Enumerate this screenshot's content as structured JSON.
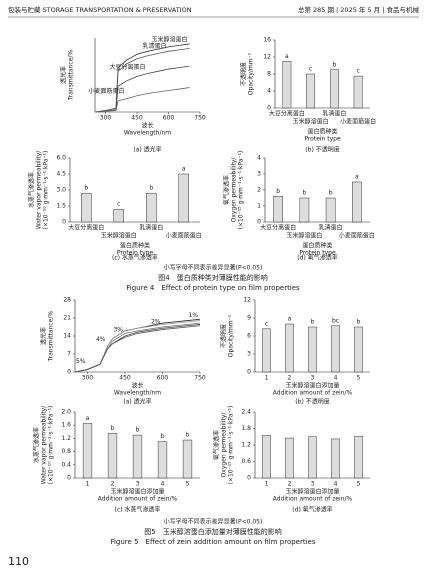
{
  "header": {
    "left": "包装与贮藏 STORAGE TRANSPORTATION & PRESERVATION",
    "right": "总第 285 期 | 2025 年 5 月 | 食品与机械"
  },
  "figure4": {
    "note": "小写字母不同表示差异显著(P<0.05)",
    "caption_cn": "图4　蛋白质种类对薄膜性能的影响",
    "caption_en": "Figure 4　Effect of protein type on film properties"
  },
  "figure5": {
    "note": "小写字母不同表示差异显著(P<0.05)",
    "caption_cn": "图5　玉米醇溶蛋白添加量对薄膜性能的影响",
    "caption_en": "Figure 5　Effect of zein addition amount on film properties"
  },
  "page_number": "110",
  "chart_data": [
    {
      "type": "line",
      "caption": "(a) 透光率",
      "ylabel": [
        "透光率",
        "Transmittance/%"
      ],
      "xlabel": [
        "波长",
        "Wavelength/nm"
      ],
      "x": [
        250,
        300,
        350,
        360,
        400,
        450,
        500,
        550,
        600,
        650,
        700
      ],
      "xlim": [
        250,
        750
      ],
      "xticks": [
        300,
        450,
        600,
        750
      ],
      "ylim": [
        0,
        100
      ],
      "series": [
        {
          "name": "玉米醇溶蛋白",
          "color": "#333",
          "values": [
            0,
            2,
            5,
            60,
            70,
            78,
            82,
            85,
            88,
            90,
            92
          ]
        },
        {
          "name": "乳清蛋白",
          "color": "#555",
          "values": [
            0,
            2,
            5,
            55,
            65,
            72,
            76,
            79,
            82,
            84,
            86
          ]
        },
        {
          "name": "大豆分离蛋白",
          "color": "#444",
          "values": [
            0,
            1,
            3,
            35,
            42,
            48,
            52,
            55,
            58,
            60,
            62
          ]
        },
        {
          "name": "小麦面筋蛋白",
          "color": "#666",
          "values": [
            0,
            1,
            2,
            15,
            18,
            22,
            25,
            27,
            29,
            31,
            33
          ]
        }
      ]
    },
    {
      "type": "bar",
      "caption": "(b) 不透明度",
      "ylabel": [
        "不透明度",
        "Opacity/mm⁻¹"
      ],
      "xlabel": [
        "蛋白质种类",
        "Protein type"
      ],
      "categories": [
        "大豆分离蛋白",
        "玉米醇溶蛋白",
        "乳清蛋白",
        "小麦面筋蛋白"
      ],
      "values": [
        11,
        8,
        9,
        7.5
      ],
      "annotations": [
        "a",
        "c",
        "b",
        "c"
      ],
      "ylim": [
        0,
        16
      ],
      "yticks": [
        0,
        4,
        8,
        12,
        16
      ],
      "color": "#ddd",
      "stagger": true
    },
    {
      "type": "bar",
      "caption": "(c) 水蒸气渗透率",
      "ylabel": [
        "水蒸气渗透率",
        "Water vapor permeability/",
        "(×10⁻¹⁰ g·mm⁻¹·s⁻¹·kPa⁻¹)"
      ],
      "xlabel": [
        "蛋白质种类",
        "Protein type"
      ],
      "categories": [
        "大豆分离蛋白",
        "玉米醇溶蛋白",
        "乳清蛋白",
        "小麦面筋蛋白"
      ],
      "values": [
        2.7,
        1.2,
        2.7,
        4.5
      ],
      "annotations": [
        "b",
        "c",
        "b",
        "a"
      ],
      "ylim": [
        0,
        6
      ],
      "yticks": [
        0,
        1.5,
        {
          "value": 3,
          "label": "3.0"
        },
        4.5,
        {
          "value": 6,
          "label": "6.0"
        }
      ],
      "color": "#ddd",
      "stagger": true
    },
    {
      "type": "bar",
      "caption": "(d) 氧气渗透率",
      "ylabel": [
        "氧气渗透率",
        "Oxygen permeability/",
        "(×10⁻¹⁵ g·mm⁻¹·s⁻¹·kPa⁻¹)"
      ],
      "xlabel": [
        "蛋白质种类",
        "Protein type"
      ],
      "categories": [
        "大豆分离蛋白",
        "玉米醇溶蛋白",
        "乳清蛋白",
        "小麦面筋蛋白"
      ],
      "values": [
        1.6,
        1.5,
        1.5,
        2.5
      ],
      "annotations": [
        "b",
        "b",
        "b",
        "a"
      ],
      "ylim": [
        0,
        4
      ],
      "yticks": [
        0,
        1,
        2,
        3,
        4
      ],
      "color": "#ddd",
      "stagger": true
    },
    {
      "type": "line",
      "caption": "(a) 透光率",
      "ylabel": [
        "透光率",
        "Transmittance/%"
      ],
      "xlabel": [
        "波长",
        "Wavelength/nm"
      ],
      "x": [
        250,
        300,
        350,
        380,
        400,
        450,
        500,
        600,
        700,
        750
      ],
      "xlim": [
        250,
        750
      ],
      "xticks": [
        300,
        450,
        600,
        750
      ],
      "ylim": [
        0,
        28
      ],
      "yticks": [
        0,
        7,
        14,
        21,
        28
      ],
      "series": [
        {
          "name": "1%",
          "color": "#222",
          "values": [
            0,
            1,
            3,
            10,
            13,
            16,
            17,
            19,
            20,
            20.5
          ]
        },
        {
          "name": "2%",
          "color": "#777",
          "values": [
            0,
            1,
            3,
            9,
            12,
            15,
            16,
            17.5,
            18.5,
            19
          ]
        },
        {
          "name": "3%",
          "color": "#444",
          "values": [
            0,
            1,
            3,
            9,
            11,
            14,
            15.5,
            17,
            18,
            18.5
          ]
        },
        {
          "name": "4%",
          "color": "#999",
          "values": [
            0,
            1,
            3,
            10,
            13,
            16,
            17,
            18.5,
            19.5,
            20
          ]
        },
        {
          "name": "5%",
          "color": "#555",
          "values": [
            0,
            1,
            3,
            9,
            11,
            13.5,
            15,
            16.5,
            17.5,
            18
          ]
        }
      ]
    },
    {
      "type": "bar",
      "caption": "(b) 不透明度",
      "ylabel": [
        "不透明度",
        "Opacity/mm⁻¹"
      ],
      "xlabel": [
        "玉米醇溶蛋白添加量",
        "Addition amount of zein/%"
      ],
      "categories": [
        "1",
        "2",
        "3",
        "4",
        "5"
      ],
      "values": [
        7.2,
        8,
        7.5,
        7.7,
        7.5
      ],
      "annotations": [
        "c",
        "a",
        "b",
        "bc",
        "b"
      ],
      "ylim": [
        0,
        12
      ],
      "yticks": [
        0,
        3,
        6,
        9,
        12
      ],
      "color": "#ddd"
    },
    {
      "type": "bar",
      "caption": "(c) 水蒸气渗透率",
      "ylabel": [
        "水蒸气渗透率",
        "Water vapor permeability/",
        "(×10⁻¹⁰ g·mm⁻¹·s⁻¹·kPa⁻¹)"
      ],
      "xlabel": [
        "玉米醇溶蛋白添加量",
        "Addition amount of zein/%"
      ],
      "categories": [
        "1",
        "2",
        "3",
        "4",
        "5"
      ],
      "values": [
        1.65,
        1.35,
        1.3,
        1.1,
        1.15
      ],
      "annotations": [
        "a",
        "b",
        "b",
        "b",
        "b"
      ],
      "ylim": [
        0,
        2
      ],
      "yticks": [
        0,
        0.4,
        0.8,
        1.2,
        1.6,
        {
          "value": 2,
          "label": "2.0"
        }
      ],
      "color": "#ddd"
    },
    {
      "type": "bar",
      "caption": "(d) 氧气渗透率",
      "ylabel": [
        "氧气渗透率",
        "Oxygen permeability/",
        "(×10⁻¹⁵ g·mm⁻¹·s⁻¹·kPa⁻¹)"
      ],
      "xlabel": [
        "玉米醇溶蛋白添加量",
        "Addition amount of zein/%"
      ],
      "categories": [
        "1",
        "2",
        "3",
        "4",
        "5"
      ],
      "values": [
        1.55,
        1.45,
        1.5,
        1.42,
        1.52
      ],
      "ylim": [
        0,
        2.4
      ],
      "yticks": [
        0,
        0.6,
        1.2,
        1.8,
        2.4
      ],
      "color": "#ddd"
    }
  ]
}
